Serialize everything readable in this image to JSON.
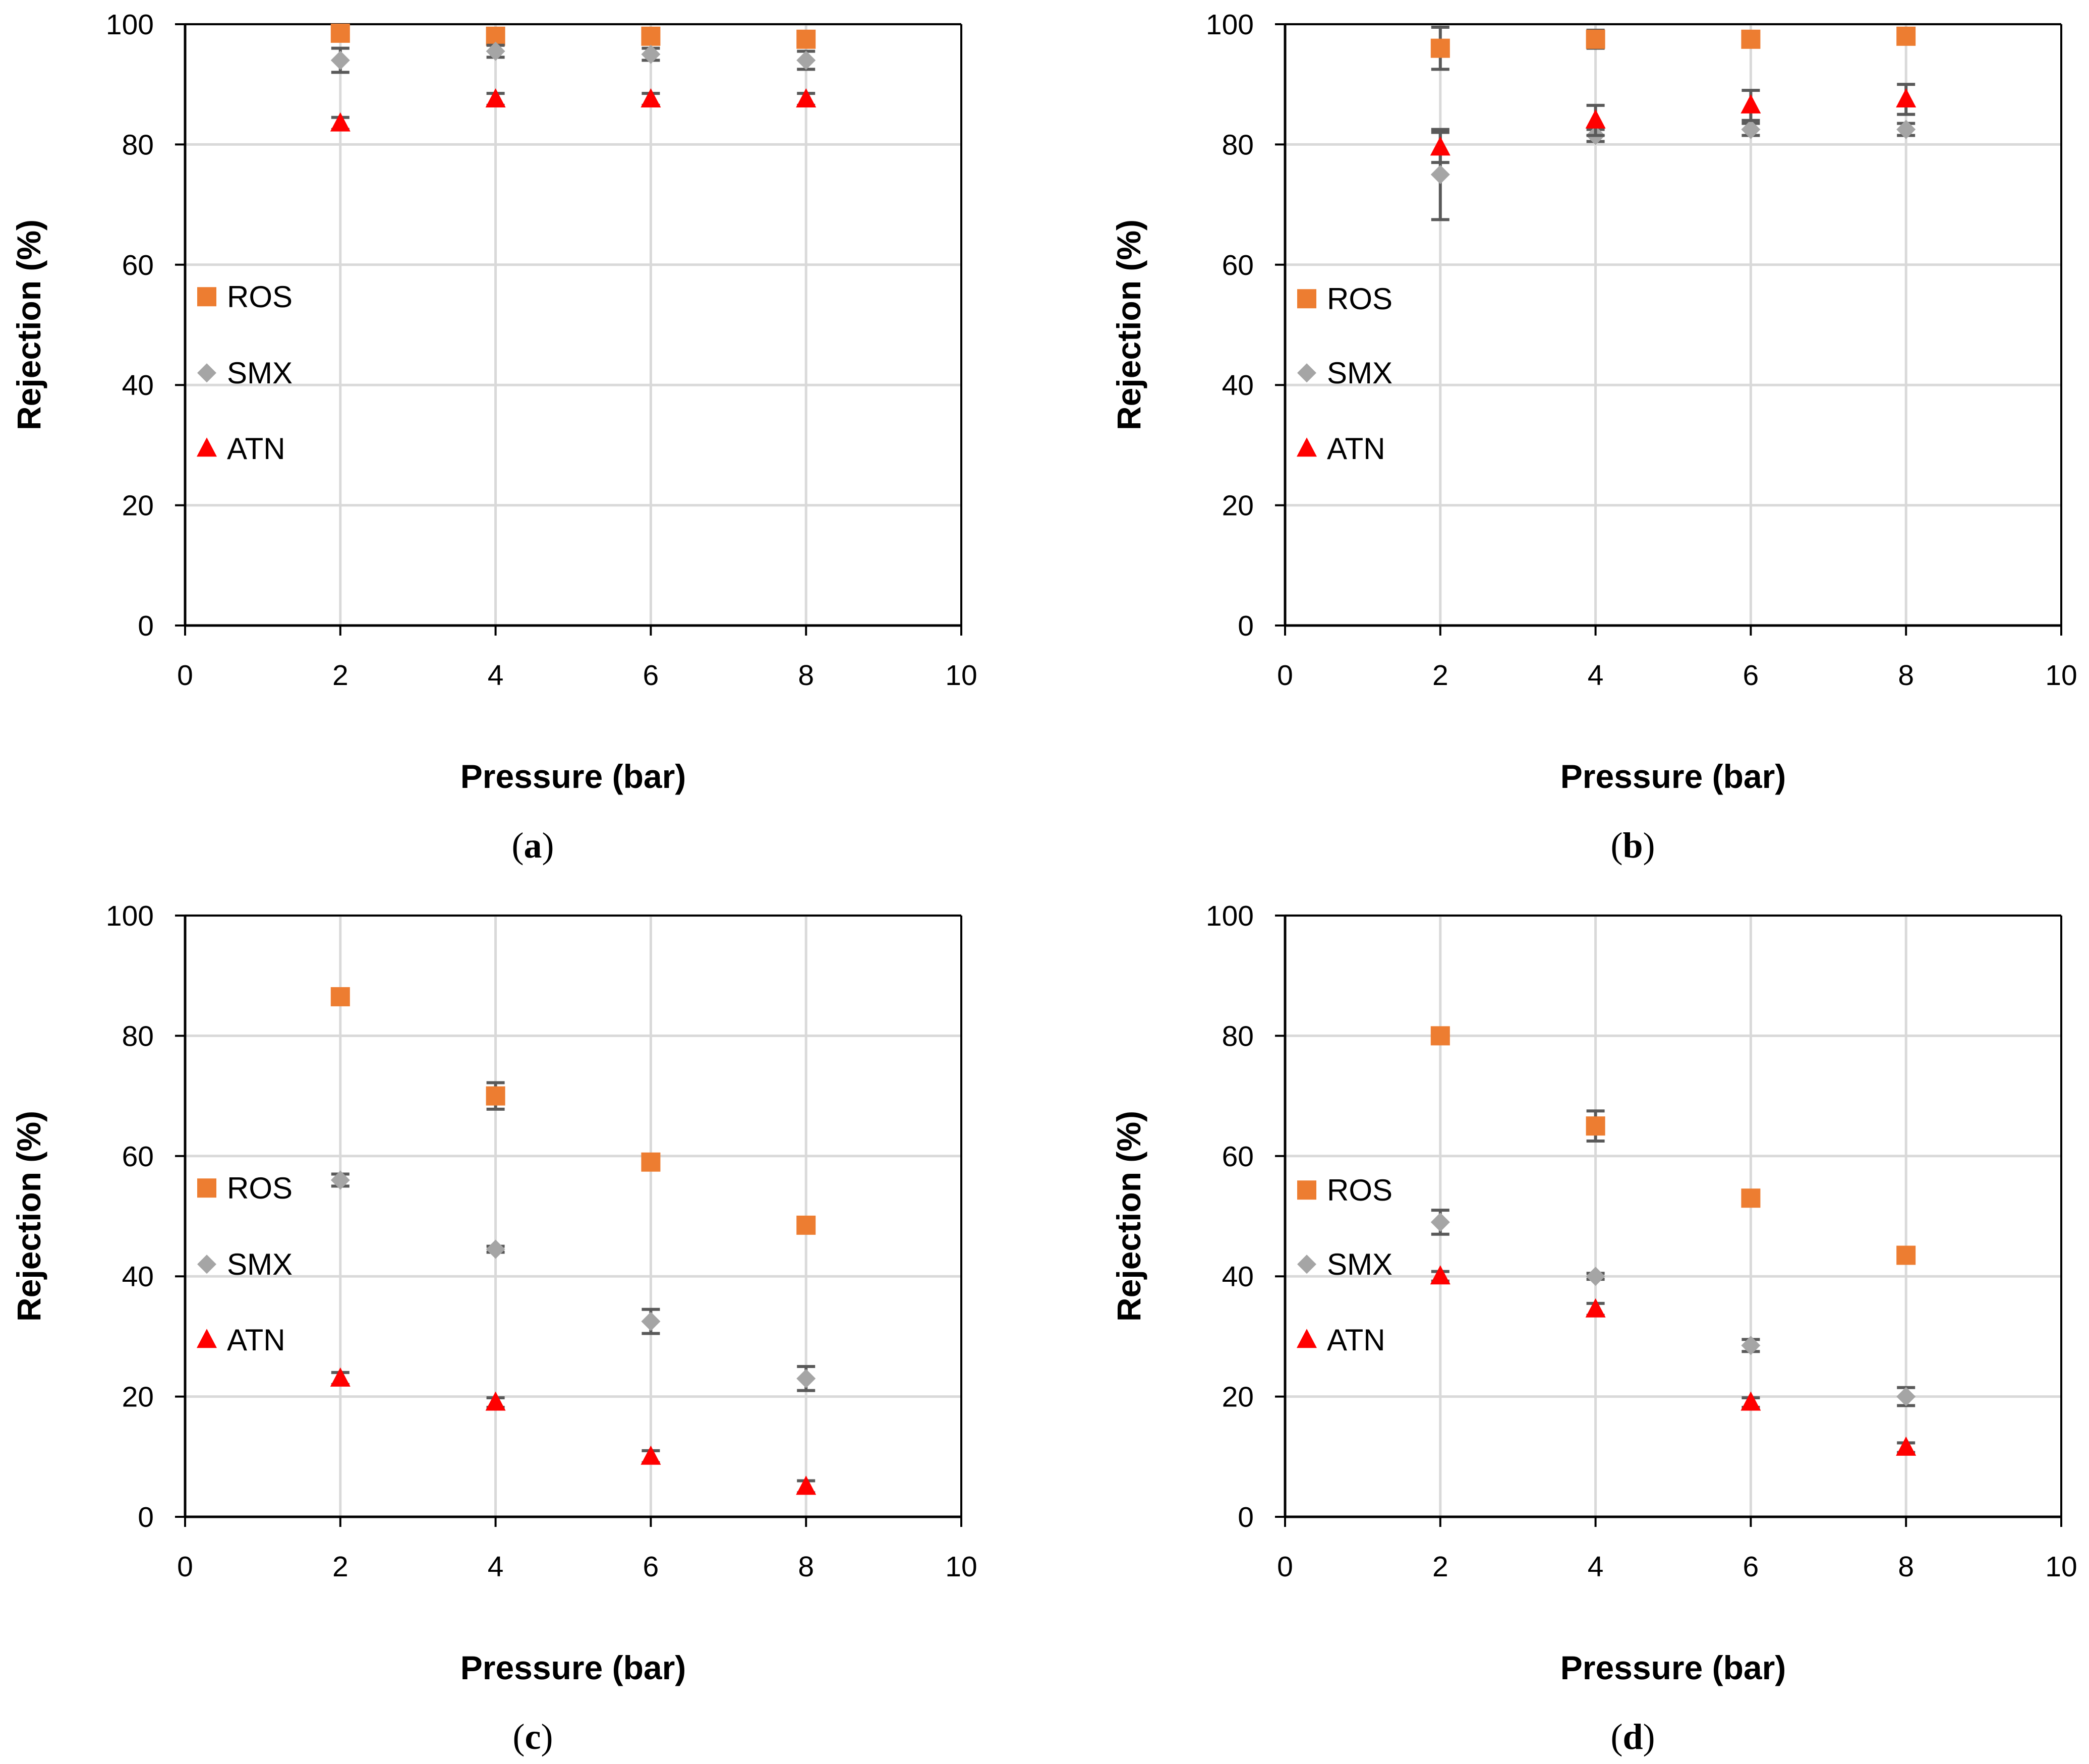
{
  "colors": {
    "ROS": "#ED7D31",
    "SMX": "#A5A5A5",
    "ATN": "#FF0000",
    "grid": "#D9D9D9",
    "axis": "#000000",
    "errorbar": "#595959"
  },
  "chart_data": [
    {
      "type": "scatter",
      "panel_label": "a",
      "xlabel": "Pressure (bar)",
      "ylabel": "Rejection (%)",
      "xlim": [
        0,
        10
      ],
      "ylim": [
        0,
        100
      ],
      "xticks": [
        0,
        2,
        4,
        6,
        8,
        10
      ],
      "yticks": [
        0,
        20,
        40,
        60,
        80,
        100
      ],
      "grid": "vertical and horizontal",
      "legend_position": "bottom-left",
      "series": [
        {
          "name": "ROS",
          "marker": "square",
          "x": [
            2,
            4,
            6,
            8
          ],
          "y": [
            98.5,
            98,
            98,
            97.5
          ],
          "err": [
            0.8,
            1.2,
            0.8,
            1.0
          ]
        },
        {
          "name": "SMX",
          "marker": "diamond",
          "x": [
            2,
            4,
            6,
            8
          ],
          "y": [
            94,
            95.5,
            95,
            94
          ],
          "err": [
            2,
            1,
            1,
            1.5
          ]
        },
        {
          "name": "ATN",
          "marker": "triangle",
          "x": [
            2,
            4,
            6,
            8
          ],
          "y": [
            83.5,
            87.5,
            87.5,
            87.5
          ],
          "err": [
            1,
            1,
            1,
            1
          ]
        }
      ]
    },
    {
      "type": "scatter",
      "panel_label": "b",
      "xlabel": "Pressure (bar)",
      "ylabel": "Rejection (%)",
      "xlim": [
        0,
        10
      ],
      "ylim": [
        0,
        100
      ],
      "xticks": [
        0,
        2,
        4,
        6,
        8,
        10
      ],
      "yticks": [
        0,
        20,
        40,
        60,
        80,
        100
      ],
      "grid": "vertical and horizontal",
      "legend_position": "bottom-left",
      "series": [
        {
          "name": "ROS",
          "marker": "square",
          "x": [
            2,
            4,
            6,
            8
          ],
          "y": [
            96,
            97.5,
            97.5,
            98
          ],
          "err": [
            3.5,
            1.5,
            0.5,
            0.5
          ]
        },
        {
          "name": "SMX",
          "marker": "diamond",
          "x": [
            2,
            4,
            6,
            8
          ],
          "y": [
            75,
            81.5,
            82.5,
            82.5
          ],
          "err": [
            7.5,
            1,
            1,
            1
          ]
        },
        {
          "name": "ATN",
          "marker": "triangle",
          "x": [
            2,
            4,
            6,
            8
          ],
          "y": [
            79.5,
            84,
            86.5,
            87.5
          ],
          "err": [
            2.5,
            2.5,
            2.5,
            2.5
          ]
        }
      ]
    },
    {
      "type": "scatter",
      "panel_label": "c",
      "xlabel": "Pressure (bar)",
      "ylabel": "Rejection (%)",
      "xlim": [
        0,
        10
      ],
      "ylim": [
        0,
        100
      ],
      "xticks": [
        0,
        2,
        4,
        6,
        8,
        10
      ],
      "yticks": [
        0,
        20,
        40,
        60,
        80,
        100
      ],
      "grid": "vertical and horizontal",
      "legend_position": "bottom-left",
      "series": [
        {
          "name": "ROS",
          "marker": "square",
          "x": [
            2,
            4,
            6,
            8
          ],
          "y": [
            86.5,
            70,
            59,
            48.5
          ],
          "err": [
            0.5,
            2.2,
            0.5,
            0.5
          ]
        },
        {
          "name": "SMX",
          "marker": "diamond",
          "x": [
            2,
            4,
            6,
            8
          ],
          "y": [
            56,
            44.5,
            32.5,
            23
          ],
          "err": [
            1,
            0.5,
            2,
            2
          ]
        },
        {
          "name": "ATN",
          "marker": "triangle",
          "x": [
            2,
            4,
            6,
            8
          ],
          "y": [
            23,
            19,
            10,
            5
          ],
          "err": [
            1,
            0.8,
            1,
            1
          ]
        }
      ]
    },
    {
      "type": "scatter",
      "panel_label": "d",
      "xlabel": "Pressure (bar)",
      "ylabel": "Rejection (%)",
      "xlim": [
        0,
        10
      ],
      "ylim": [
        0,
        100
      ],
      "xticks": [
        0,
        2,
        4,
        6,
        8,
        10
      ],
      "yticks": [
        0,
        20,
        40,
        60,
        80,
        100
      ],
      "grid": "vertical and horizontal",
      "legend_position": "bottom-left",
      "series": [
        {
          "name": "ROS",
          "marker": "square",
          "x": [
            2,
            4,
            6,
            8
          ],
          "y": [
            80,
            65,
            53,
            43.5
          ],
          "err": [
            0.5,
            2.5,
            0.5,
            0.5
          ]
        },
        {
          "name": "SMX",
          "marker": "diamond",
          "x": [
            2,
            4,
            6,
            8
          ],
          "y": [
            49,
            40,
            28.5,
            20
          ],
          "err": [
            2,
            0.5,
            1,
            1.5
          ]
        },
        {
          "name": "ATN",
          "marker": "triangle",
          "x": [
            2,
            4,
            6,
            8
          ],
          "y": [
            40,
            34.5,
            19,
            11.5
          ],
          "err": [
            0.8,
            1,
            0.8,
            0.8
          ]
        }
      ]
    }
  ]
}
